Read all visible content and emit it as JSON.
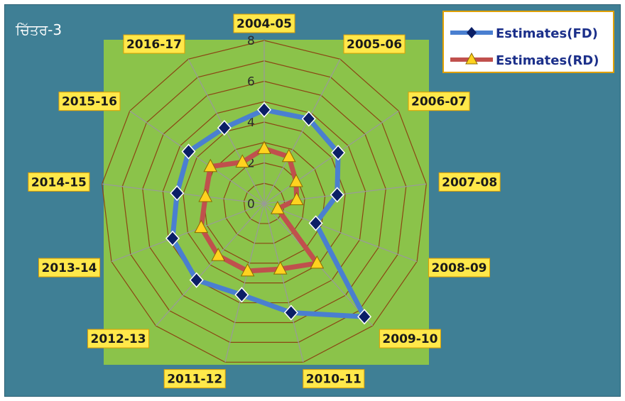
{
  "figure_label": "ਚਿੱਤਰ-3",
  "colors": {
    "background": "#3f7f95",
    "plot_area": "#8bc34a",
    "grid": "#8b4513",
    "spoke": "#9a9a9a",
    "series_fd_line": "#4a7fd0",
    "series_fd_marker": "#0b1f66",
    "series_rd_line": "#c0504d",
    "series_rd_marker": "#ffd21f",
    "label_bg": "#ffe84a",
    "label_border": "#e0a000"
  },
  "chart_data": {
    "type": "radar",
    "title": "",
    "categories": [
      "2004-05",
      "2005-06",
      "2006-07",
      "2007-08",
      "2008-09",
      "2009-10",
      "2010-11",
      "2011-12",
      "2012-13",
      "2013-14",
      "2014-15",
      "2015-16",
      "2016-17"
    ],
    "rlim": [
      0,
      8
    ],
    "rticks": [
      0,
      2,
      4,
      6,
      8
    ],
    "grid": true,
    "legend_position": "top-right",
    "series": [
      {
        "name": "Estimates(FD)",
        "marker": "diamond",
        "values": [
          4.6,
          4.7,
          4.4,
          3.6,
          2.7,
          7.4,
          5.5,
          4.6,
          5.0,
          4.8,
          4.3,
          4.5,
          4.2
        ]
      },
      {
        "name": "Estimates(RD)",
        "marker": "triangle",
        "values": [
          2.7,
          2.6,
          1.9,
          1.6,
          0.7,
          3.9,
          3.3,
          3.4,
          3.4,
          3.3,
          2.9,
          3.2,
          2.3
        ]
      }
    ]
  }
}
